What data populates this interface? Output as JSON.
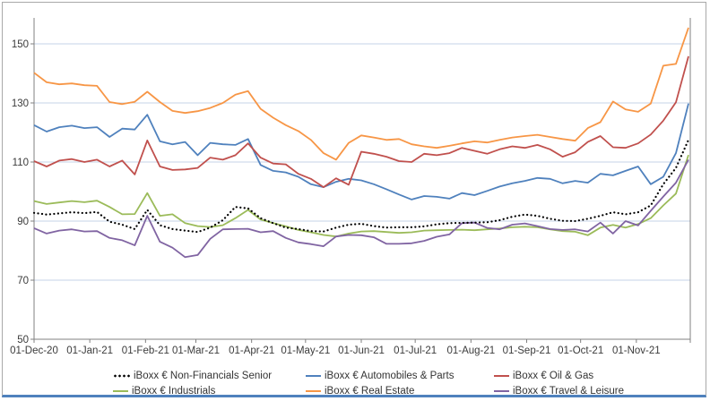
{
  "window": {
    "background": "#ffffff",
    "frame_border_color": "#a9a9a9",
    "frame_bottom_color": "#4f81bd"
  },
  "chart_data": {
    "type": "line",
    "title": "",
    "xlabel": "",
    "ylabel": "",
    "grid": true,
    "gridline_color": "#c5d3e7",
    "axis_color": "#808080",
    "label_color": "#3b3b3b",
    "legend_position": "bottom",
    "y_axis": {
      "min": 50,
      "max": 158,
      "ticks": [
        50,
        70,
        90,
        110,
        130,
        150
      ]
    },
    "x_axis": {
      "tick_labels": [
        "01-Dec-20",
        "01-Jan-21",
        "01-Feb-21",
        "01-Mar-21",
        "01-Apr-21",
        "01-May-21",
        "01-Jun-21",
        "01-Jul-21",
        "01-Aug-21",
        "01-Sep-21",
        "01-Oct-21",
        "01-Nov-21"
      ],
      "tick_day_offsets": [
        0,
        31,
        62,
        90,
        121,
        151,
        182,
        212,
        243,
        274,
        304,
        335
      ],
      "days_total": 365
    },
    "sample_interval_days": 7,
    "series": [
      {
        "name": "iBoxx € Non-Financials Senior",
        "color": "#000000",
        "style": "dotted",
        "weekly_values": [
          92.8,
          92.2,
          92.6,
          93.0,
          92.7,
          93.1,
          89.8,
          88.8,
          87.3,
          93.8,
          88.6,
          87.3,
          86.8,
          86.3,
          87.8,
          90.3,
          94.8,
          94.3,
          91.0,
          89.3,
          87.8,
          87.3,
          86.6,
          86.5,
          87.8,
          88.8,
          89.1,
          88.3,
          87.8,
          87.9,
          87.9,
          88.2,
          88.9,
          89.3,
          89.4,
          89.5,
          89.6,
          90.3,
          91.5,
          92.2,
          91.8,
          90.8,
          90.1,
          90.0,
          90.8,
          91.8,
          93.0,
          92.3,
          93.0,
          95.3,
          102.5,
          108.0,
          117.5
        ]
      },
      {
        "name": "iBoxx € Automobiles & Parts",
        "color": "#4F81BD",
        "style": "solid",
        "weekly_values": [
          122.5,
          120.3,
          121.8,
          122.3,
          121.5,
          121.8,
          118.5,
          121.3,
          121.0,
          126.0,
          117.0,
          116.0,
          116.8,
          112.3,
          116.5,
          116.0,
          115.8,
          117.8,
          109.0,
          107.0,
          106.5,
          105.0,
          102.5,
          101.5,
          103.3,
          104.3,
          103.8,
          102.5,
          100.8,
          99.0,
          97.3,
          98.5,
          98.2,
          97.6,
          99.5,
          98.8,
          100.2,
          101.7,
          102.8,
          103.6,
          104.6,
          104.3,
          102.8,
          103.6,
          103.0,
          106.0,
          105.5,
          107.0,
          108.5,
          102.5,
          105.0,
          113.0,
          129.8
        ]
      },
      {
        "name": "iBoxx € Oil & Gas",
        "color": "#C0504D",
        "style": "solid",
        "weekly_values": [
          110.3,
          108.5,
          110.5,
          111.0,
          110.0,
          110.8,
          108.5,
          110.5,
          105.8,
          117.3,
          108.5,
          107.3,
          107.5,
          108.0,
          111.5,
          110.8,
          112.3,
          116.3,
          111.5,
          109.5,
          109.2,
          106.0,
          104.3,
          101.5,
          104.5,
          102.3,
          113.5,
          112.8,
          111.8,
          110.3,
          110.0,
          112.8,
          112.3,
          113.0,
          114.8,
          113.8,
          112.8,
          114.3,
          115.3,
          114.8,
          115.8,
          114.3,
          111.8,
          113.3,
          116.8,
          118.8,
          115.0,
          114.8,
          116.3,
          119.3,
          124.0,
          130.2,
          145.8
        ]
      },
      {
        "name": "iBoxx € Industrials",
        "color": "#9BBB59",
        "style": "solid",
        "weekly_values": [
          96.8,
          95.8,
          96.3,
          96.8,
          96.4,
          96.9,
          94.8,
          92.3,
          92.4,
          99.5,
          91.8,
          92.3,
          89.3,
          88.3,
          88.0,
          88.6,
          91.0,
          93.8,
          90.5,
          89.3,
          88.2,
          87.0,
          86.2,
          85.3,
          84.8,
          85.8,
          86.5,
          86.6,
          86.3,
          86.0,
          86.2,
          86.8,
          86.9,
          87.0,
          87.1,
          86.9,
          87.2,
          87.5,
          87.9,
          88.1,
          87.9,
          87.2,
          86.6,
          86.4,
          85.2,
          87.8,
          88.7,
          87.8,
          89.0,
          91.0,
          95.3,
          99.3,
          112.4
        ]
      },
      {
        "name": "iBoxx € Real Estate",
        "color": "#F79646",
        "style": "solid",
        "weekly_values": [
          140.2,
          137.0,
          136.3,
          136.6,
          136.0,
          135.8,
          130.3,
          129.6,
          130.4,
          133.8,
          130.3,
          127.3,
          126.6,
          127.2,
          128.3,
          130.0,
          132.8,
          134.0,
          128.0,
          125.0,
          122.5,
          120.5,
          117.5,
          113.0,
          110.8,
          116.5,
          119.0,
          118.3,
          117.5,
          117.8,
          116.0,
          115.3,
          114.8,
          115.5,
          116.3,
          117.0,
          116.6,
          117.5,
          118.3,
          118.8,
          119.2,
          118.5,
          117.8,
          117.2,
          121.5,
          123.5,
          130.5,
          127.8,
          127.0,
          129.8,
          142.6,
          143.2,
          155.5
        ]
      },
      {
        "name": "iBoxx € Travel & Leisure",
        "color": "#8064A2",
        "style": "solid",
        "weekly_values": [
          87.6,
          85.8,
          86.8,
          87.2,
          86.5,
          86.6,
          84.3,
          83.5,
          81.8,
          91.8,
          83.0,
          81.0,
          77.8,
          78.5,
          84.0,
          87.2,
          87.3,
          87.4,
          86.2,
          86.6,
          84.3,
          82.8,
          82.2,
          81.5,
          84.8,
          85.3,
          85.2,
          84.5,
          82.3,
          82.3,
          82.5,
          83.3,
          84.7,
          85.5,
          89.3,
          89.5,
          87.7,
          87.2,
          88.8,
          89.2,
          88.3,
          87.3,
          87.0,
          87.2,
          86.5,
          89.5,
          85.8,
          90.0,
          88.5,
          93.5,
          98.3,
          103.0,
          110.8
        ]
      }
    ],
    "legend_rows": [
      [
        0,
        1,
        2
      ],
      [
        3,
        4,
        5
      ]
    ],
    "legend_column_x": [
      126,
      341,
      551
    ]
  }
}
